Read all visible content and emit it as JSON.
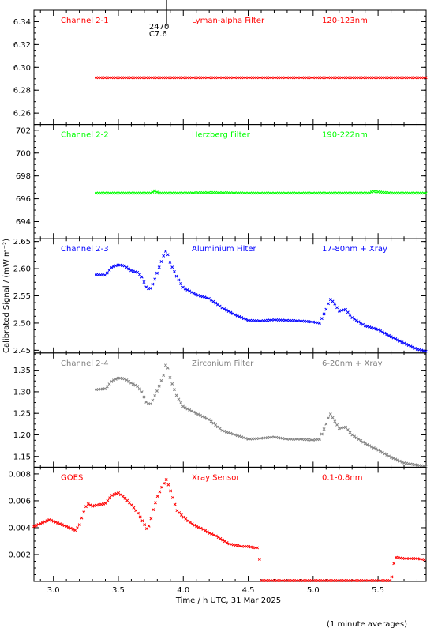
{
  "chart_data": {
    "type": "scatter",
    "xlabel": "Time / h UTC, 31 Mar 2025",
    "ylabel": "Calibrated Signal / (mW m⁻²)",
    "footnote": "(1 minute averages)",
    "xlim": [
      2.85,
      5.87
    ],
    "x_ticks": [
      "3.0",
      "3.5",
      "4.0",
      "4.5",
      "5.0",
      "5.5"
    ],
    "x_tick_values": [
      3.0,
      3.5,
      4.0,
      4.5,
      5.0,
      5.5
    ],
    "annotation": {
      "x": 3.87,
      "text1": "2470",
      "text2": "C7.6"
    },
    "panels": [
      {
        "channel": "Channel 2-1",
        "filter": "Lyman-alpha Filter",
        "band": "120-123nm",
        "color": "#ff0000",
        "ylim": [
          6.25,
          6.35
        ],
        "y_ticks": [
          "6.26",
          "6.28",
          "6.30",
          "6.32",
          "6.34"
        ],
        "y_tick_values": [
          6.26,
          6.28,
          6.3,
          6.32,
          6.34
        ],
        "series": {
          "x": [
            3.33,
            3.5,
            4.0,
            4.5,
            5.0,
            5.5,
            5.87
          ],
          "y": [
            6.291,
            6.291,
            6.291,
            6.291,
            6.291,
            6.291,
            6.291
          ]
        }
      },
      {
        "channel": "Channel 2-2",
        "filter": "Herzberg Filter",
        "band": "190-222nm",
        "color": "#00ff00",
        "ylim": [
          692.5,
          702.5
        ],
        "y_ticks": [
          "694",
          "696",
          "698",
          "700",
          "702"
        ],
        "y_tick_values": [
          694,
          696,
          698,
          700,
          702
        ],
        "series": {
          "x": [
            3.33,
            3.5,
            3.75,
            3.78,
            3.81,
            4.0,
            4.2,
            4.5,
            5.0,
            5.3,
            5.43,
            5.46,
            5.6,
            5.87
          ],
          "y": [
            696.5,
            696.5,
            696.5,
            696.7,
            696.5,
            696.5,
            696.55,
            696.5,
            696.5,
            696.5,
            696.5,
            696.65,
            696.5,
            696.5
          ]
        }
      },
      {
        "channel": "Channel 2-3",
        "filter": "Aluminium Filter",
        "band": "17-80nm + Xray",
        "color": "#0000ff",
        "ylim": [
          2.445,
          2.655
        ],
        "y_ticks": [
          "2.45",
          "2.50",
          "2.55",
          "2.60",
          "2.65"
        ],
        "y_tick_values": [
          2.45,
          2.5,
          2.55,
          2.6,
          2.65
        ],
        "series": {
          "x": [
            3.33,
            3.4,
            3.45,
            3.5,
            3.55,
            3.6,
            3.65,
            3.68,
            3.72,
            3.75,
            3.78,
            3.81,
            3.85,
            3.87,
            3.9,
            3.95,
            4.0,
            4.1,
            4.2,
            4.3,
            4.4,
            4.5,
            4.6,
            4.7,
            4.8,
            4.9,
            5.0,
            5.05,
            5.1,
            5.13,
            5.16,
            5.2,
            5.25,
            5.3,
            5.4,
            5.5,
            5.6,
            5.7,
            5.8,
            5.87
          ],
          "y": [
            2.589,
            2.588,
            2.603,
            2.607,
            2.605,
            2.596,
            2.593,
            2.585,
            2.563,
            2.564,
            2.58,
            2.6,
            2.625,
            2.635,
            2.61,
            2.585,
            2.565,
            2.552,
            2.545,
            2.528,
            2.515,
            2.505,
            2.504,
            2.506,
            2.505,
            2.504,
            2.502,
            2.5,
            2.525,
            2.544,
            2.538,
            2.522,
            2.525,
            2.51,
            2.495,
            2.488,
            2.475,
            2.463,
            2.452,
            2.448
          ]
        }
      },
      {
        "channel": "Channel 2-4",
        "filter": "Zirconium Filter",
        "band": "6-20nm + Xray",
        "color": "#808080",
        "ylim": [
          1.125,
          1.39
        ],
        "y_ticks": [
          "1.15",
          "1.20",
          "1.25",
          "1.30",
          "1.35"
        ],
        "y_tick_values": [
          1.15,
          1.2,
          1.25,
          1.3,
          1.35
        ],
        "series": {
          "x": [
            3.33,
            3.4,
            3.45,
            3.5,
            3.55,
            3.6,
            3.65,
            3.68,
            3.72,
            3.75,
            3.78,
            3.81,
            3.85,
            3.87,
            3.9,
            3.95,
            4.0,
            4.1,
            4.2,
            4.3,
            4.4,
            4.5,
            4.6,
            4.7,
            4.8,
            4.9,
            5.0,
            5.05,
            5.1,
            5.13,
            5.16,
            5.2,
            5.25,
            5.3,
            5.4,
            5.5,
            5.6,
            5.7,
            5.8,
            5.87
          ],
          "y": [
            1.305,
            1.307,
            1.325,
            1.332,
            1.33,
            1.32,
            1.312,
            1.3,
            1.272,
            1.272,
            1.29,
            1.31,
            1.34,
            1.37,
            1.33,
            1.29,
            1.265,
            1.25,
            1.235,
            1.21,
            1.2,
            1.19,
            1.192,
            1.195,
            1.19,
            1.19,
            1.188,
            1.19,
            1.225,
            1.25,
            1.235,
            1.215,
            1.218,
            1.2,
            1.18,
            1.165,
            1.148,
            1.135,
            1.13,
            1.127
          ]
        }
      },
      {
        "channel": "GOES",
        "filter": "Xray Sensor",
        "band": "0.1-0.8nm",
        "color": "#ff0000",
        "ylim": [
          0.0,
          0.0085
        ],
        "y_ticks": [
          "0.002",
          "0.004",
          "0.006",
          "0.008"
        ],
        "y_tick_values": [
          0.002,
          0.004,
          0.006,
          0.008
        ],
        "series": {
          "x": [
            2.85,
            2.9,
            2.97,
            3.02,
            3.1,
            3.17,
            3.2,
            3.22,
            3.26,
            3.3,
            3.35,
            3.4,
            3.45,
            3.5,
            3.55,
            3.6,
            3.65,
            3.68,
            3.72,
            3.74,
            3.77,
            3.8,
            3.84,
            3.87,
            3.9,
            3.95,
            4.0,
            4.05,
            4.1,
            4.15,
            4.2,
            4.25,
            4.3,
            4.35,
            4.4,
            4.45,
            4.5,
            4.55,
            4.58,
            4.6,
            4.65,
            4.8,
            5.0,
            5.2,
            5.4,
            5.55,
            5.6,
            5.63,
            5.7,
            5.8,
            5.87
          ],
          "y": [
            0.0041,
            0.0043,
            0.0046,
            0.0044,
            0.0041,
            0.0038,
            0.0042,
            0.0048,
            0.0058,
            0.0056,
            0.0057,
            0.0058,
            0.0064,
            0.0066,
            0.0062,
            0.0057,
            0.0051,
            0.0046,
            0.0039,
            0.0042,
            0.0054,
            0.0063,
            0.0071,
            0.0076,
            0.0068,
            0.0053,
            0.0048,
            0.0044,
            0.0041,
            0.0039,
            0.0036,
            0.0034,
            0.0031,
            0.0028,
            0.0027,
            0.0026,
            0.0026,
            0.0025,
            0.0025,
            0.0,
            0.0,
            0.0,
            0.0,
            0.0,
            0.0,
            0.0,
            0.0,
            0.0018,
            0.0017,
            0.0017,
            0.0016
          ]
        }
      }
    ]
  }
}
